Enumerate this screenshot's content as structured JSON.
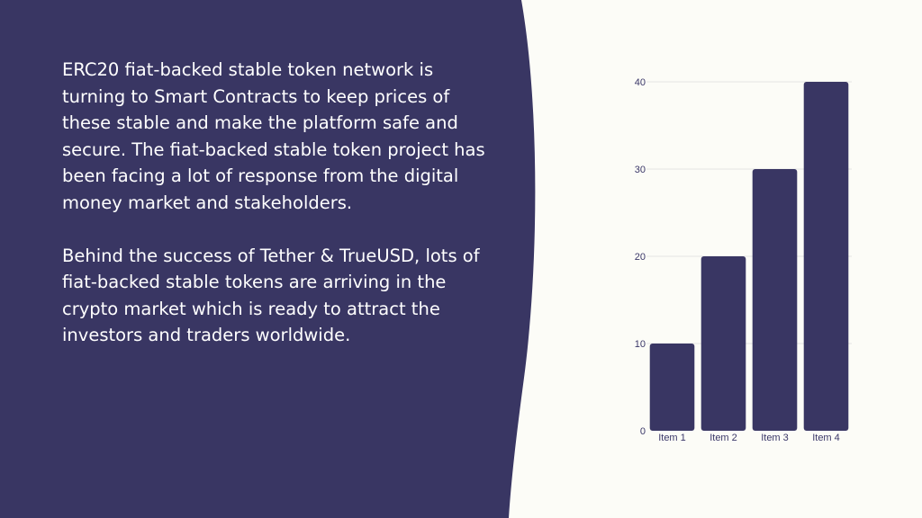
{
  "colors": {
    "panel": "#393663",
    "background": "#FCFCF7",
    "bar": "#393663",
    "grid": "#E3E3E3",
    "text_light": "#FFFFFF"
  },
  "content": {
    "paragraphs": [
      "ERC20 fiat-backed stable token network is turning to Smart Contracts to keep prices of these stable and make the platform safe and secure. The fiat-backed stable token project has been facing a lot of response from the digital money market and stakeholders.",
      "Behind the success of Tether & TrueUSD, lots of fiat-backed stable tokens are arriving in the crypto market which is ready to attract the investors and traders worldwide."
    ]
  },
  "chart_data": {
    "type": "bar",
    "categories": [
      "Item 1",
      "Item 2",
      "Item 3",
      "Item 4"
    ],
    "values": [
      10,
      20,
      30,
      40
    ],
    "yticks": [
      0,
      10,
      20,
      30,
      40
    ],
    "ylim": [
      0,
      40
    ],
    "grid": true,
    "legend": "none"
  }
}
